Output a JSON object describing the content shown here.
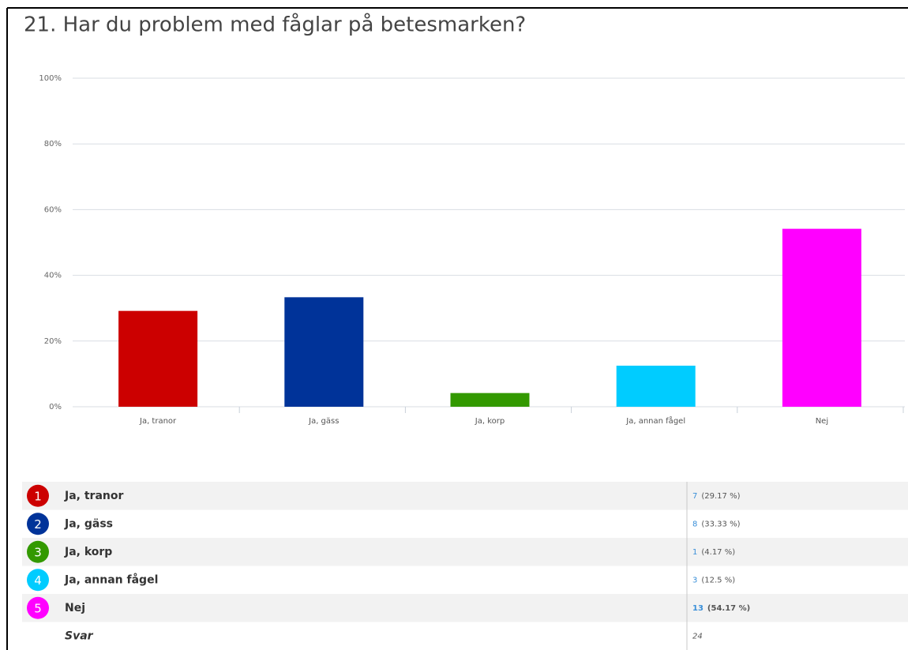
{
  "chart_data": {
    "type": "bar",
    "title": "21. Har du problem med fåglar på betesmarken?",
    "categories": [
      "Ja, tranor",
      "Ja, gäss",
      "Ja, korp",
      "Ja, annan fågel",
      "Nej"
    ],
    "values": [
      29.17,
      33.33,
      4.17,
      12.5,
      54.17
    ],
    "colors": [
      "#cc0000",
      "#003399",
      "#339900",
      "#00ccff",
      "#ff00ff"
    ],
    "ylim": [
      0,
      100
    ],
    "yticks": [
      {
        "value": 0,
        "label": "0%"
      },
      {
        "value": 20,
        "label": "20%"
      },
      {
        "value": 40,
        "label": "40%"
      },
      {
        "value": 60,
        "label": "60%"
      },
      {
        "value": 80,
        "label": "80%"
      },
      {
        "value": 100,
        "label": "100%"
      }
    ],
    "grid": true
  },
  "table": {
    "rows": [
      {
        "index": "1",
        "label": "Ja, tranor",
        "count": 7,
        "percent": "(29.17 %)"
      },
      {
        "index": "2",
        "label": "Ja, gäss",
        "count": 8,
        "percent": "(33.33 %)"
      },
      {
        "index": "3",
        "label": "Ja, korp",
        "count": 1,
        "percent": "(4.17 %)"
      },
      {
        "index": "4",
        "label": "Ja, annan fågel",
        "count": 3,
        "percent": "(12.5 %)"
      },
      {
        "index": "5",
        "label": "Nej",
        "count": 13,
        "percent": "(54.17 %)"
      }
    ],
    "footer": {
      "label": "Svar",
      "count": 24
    }
  }
}
